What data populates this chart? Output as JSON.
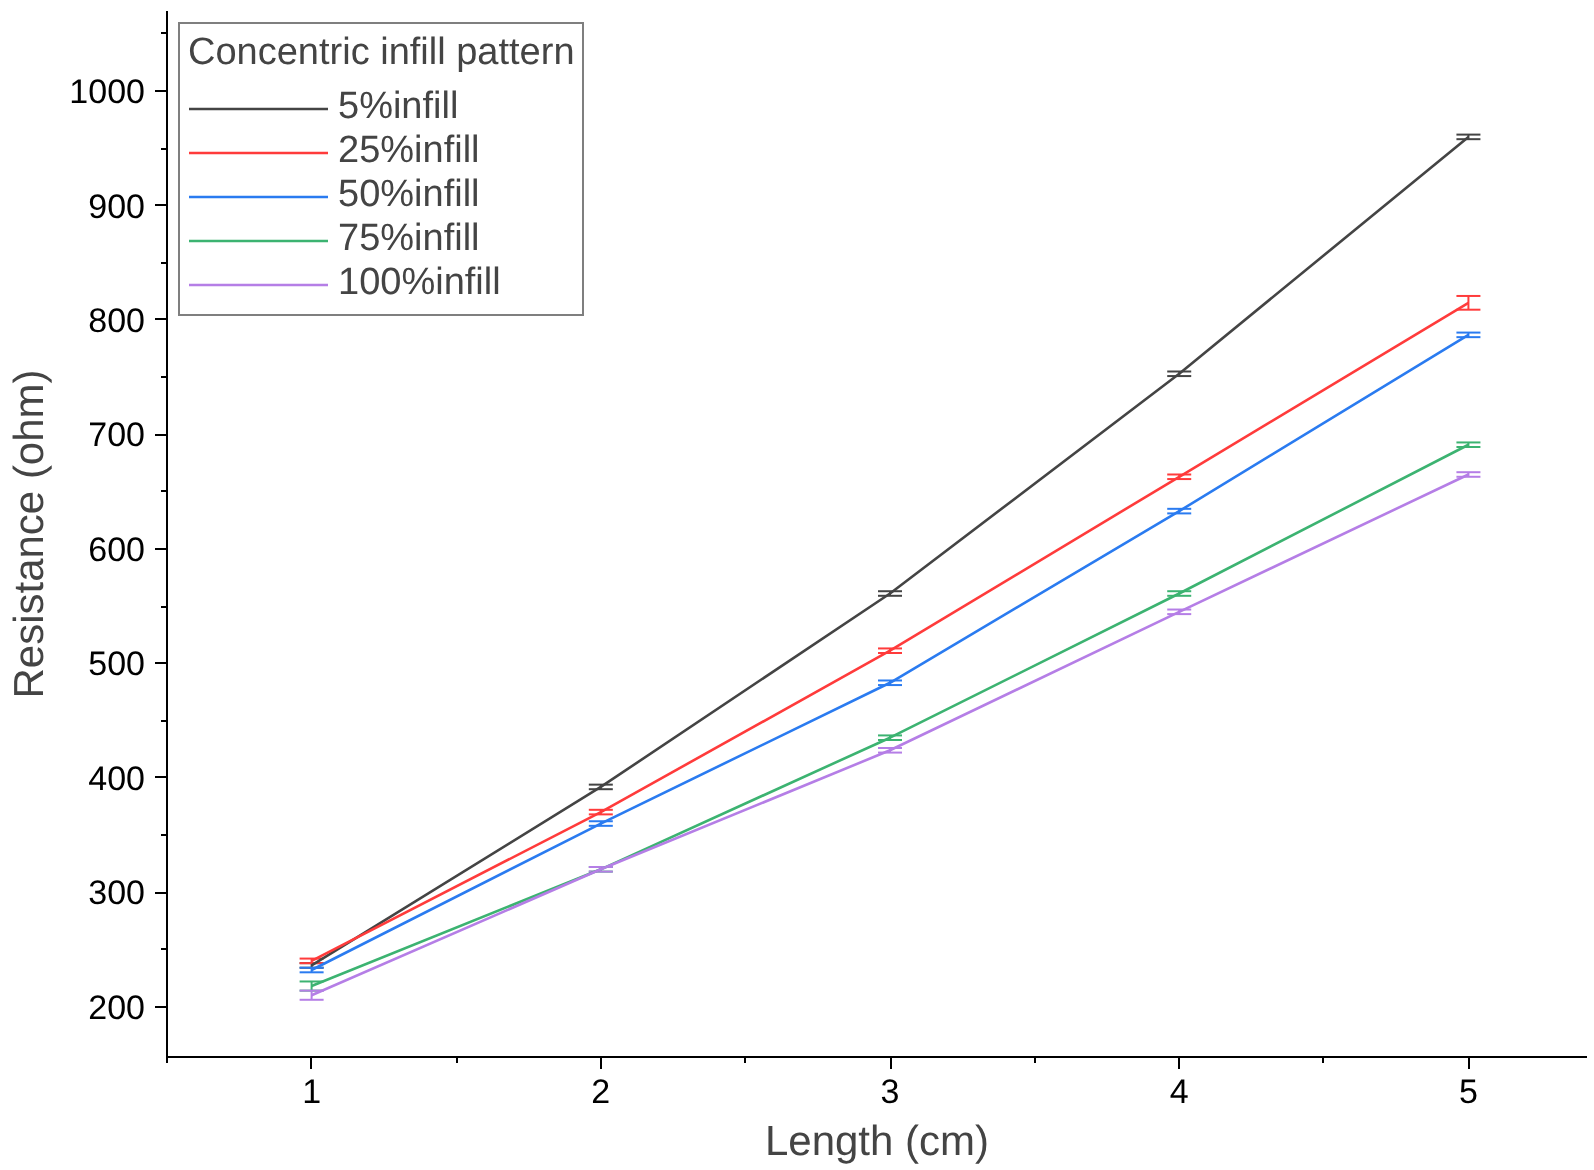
{
  "chart_data": {
    "type": "line",
    "xlabel": "Length (cm)",
    "ylabel": "Resistance (ohm)",
    "legend_title": "Concentric infill pattern",
    "x": [
      1,
      2,
      3,
      4,
      5
    ],
    "series": [
      {
        "name": "5%infill",
        "color": "#444444",
        "values": [
          236,
          392,
          561,
          753,
          960
        ],
        "errors": [
          2,
          2,
          2,
          2,
          2
        ]
      },
      {
        "name": "25%infill",
        "color": "#ff3b3b",
        "values": [
          240,
          370,
          511,
          663,
          815
        ],
        "errors": [
          2,
          2,
          2,
          2,
          6
        ]
      },
      {
        "name": "50%infill",
        "color": "#2a7bf0",
        "values": [
          232,
          360,
          483,
          633,
          787
        ],
        "errors": [
          2,
          2,
          2,
          2,
          2
        ]
      },
      {
        "name": "75%infill",
        "color": "#3cb371",
        "values": [
          218,
          320,
          435,
          561,
          691
        ],
        "errors": [
          4,
          2,
          2,
          2,
          2
        ]
      },
      {
        "name": "100%infill",
        "color": "#b57ee6",
        "values": [
          210,
          320,
          424,
          545,
          665
        ],
        "errors": [
          4,
          2,
          2,
          2,
          2
        ]
      }
    ],
    "xlim": [
      0.5,
      5.41
    ],
    "ylim": [
      156,
      1070
    ],
    "xticks": [
      1,
      2,
      3,
      4,
      5
    ],
    "yticks": [
      200,
      300,
      400,
      500,
      600,
      700,
      800,
      900,
      1000
    ],
    "grid": false,
    "legend": "top left",
    "marker": "none",
    "line_style": "solid"
  }
}
